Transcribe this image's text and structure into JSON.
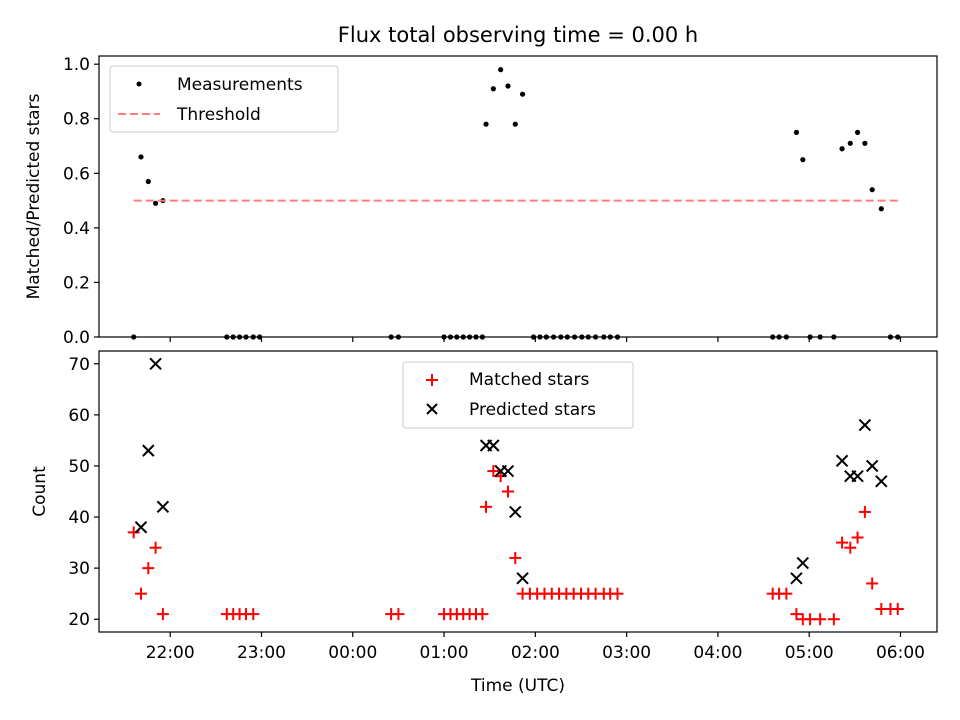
{
  "title": "Flux total observing time = 0.00 h",
  "colors": {
    "measurements": "#000000",
    "threshold": "#ff7b7b",
    "matched": "#ff0000",
    "predicted": "#000000",
    "axes": "#000000",
    "background": "#ffffff"
  },
  "chart_data": [
    {
      "type": "scatter",
      "title": "Flux total observing time = 0.00 h",
      "xlabel": "",
      "ylabel": "Matched/Predicted stars",
      "x_unit": "hours since 21:00 UTC",
      "xlim": [
        0.22,
        9.4
      ],
      "ylim": [
        0.0,
        1.03
      ],
      "yticks": [
        0.0,
        0.2,
        0.4,
        0.6,
        0.8,
        1.0
      ],
      "yticklabels": [
        "0.0",
        "0.2",
        "0.4",
        "0.6",
        "0.8",
        "1.0"
      ],
      "grid": false,
      "legend_position": "upper left",
      "series": [
        {
          "name": "Measurements",
          "kind": "scatter",
          "marker": "dot",
          "color": "#000000",
          "x": [
            0.6,
            0.68,
            0.76,
            0.84,
            0.92,
            1.62,
            1.69,
            1.76,
            1.83,
            1.91,
            1.98,
            3.42,
            3.5,
            4.0,
            4.07,
            4.14,
            4.21,
            4.28,
            4.35,
            4.42,
            4.46,
            4.54,
            4.62,
            4.7,
            4.78,
            4.86,
            4.98,
            5.05,
            5.12,
            5.2,
            5.28,
            5.35,
            5.43,
            5.51,
            5.58,
            5.66,
            5.75,
            5.82,
            5.9,
            7.6,
            7.67,
            7.75,
            7.86,
            7.93,
            8.01,
            8.12,
            8.27,
            8.36,
            8.45,
            8.53,
            8.61,
            8.69,
            8.79,
            8.89,
            8.97
          ],
          "y": [
            0.0,
            0.66,
            0.57,
            0.49,
            0.5,
            0.0,
            0.0,
            0.0,
            0.0,
            0.0,
            0.0,
            0.0,
            0.0,
            0.0,
            0.0,
            0.0,
            0.0,
            0.0,
            0.0,
            0.0,
            0.78,
            0.91,
            0.98,
            0.92,
            0.78,
            0.89,
            0.0,
            0.0,
            0.0,
            0.0,
            0.0,
            0.0,
            0.0,
            0.0,
            0.0,
            0.0,
            0.0,
            0.0,
            0.0,
            0.0,
            0.0,
            0.0,
            0.75,
            0.65,
            0.0,
            0.0,
            0.0,
            0.69,
            0.71,
            0.75,
            0.71,
            0.54,
            0.47,
            0.0,
            0.0
          ]
        },
        {
          "name": "Threshold",
          "kind": "line",
          "style": "dashed",
          "color": "#ff7b7b",
          "x": [
            0.6,
            8.97
          ],
          "y": [
            0.5,
            0.5
          ]
        }
      ]
    },
    {
      "type": "scatter",
      "title": "",
      "xlabel": "Time (UTC)",
      "ylabel": "Count",
      "x_unit": "hours since 21:00 UTC",
      "xlim": [
        0.22,
        9.4
      ],
      "ylim": [
        17.5,
        72.5
      ],
      "yticks": [
        20,
        30,
        40,
        50,
        60,
        70
      ],
      "yticklabels": [
        "20",
        "30",
        "40",
        "50",
        "60",
        "70"
      ],
      "xticks": [
        1,
        2,
        3,
        4,
        5,
        6,
        7,
        8,
        9
      ],
      "xticklabels": [
        "22:00",
        "23:00",
        "00:00",
        "01:00",
        "02:00",
        "03:00",
        "04:00",
        "05:00",
        "06:00"
      ],
      "grid": false,
      "legend_position": "upper center",
      "series": [
        {
          "name": "Matched stars",
          "kind": "scatter",
          "marker": "plus",
          "color": "#ff0000",
          "x": [
            0.6,
            0.68,
            0.76,
            0.84,
            0.92,
            1.62,
            1.69,
            1.76,
            1.83,
            1.91,
            3.42,
            3.5,
            4.0,
            4.07,
            4.14,
            4.21,
            4.28,
            4.35,
            4.42,
            4.46,
            4.54,
            4.62,
            4.7,
            4.78,
            4.86,
            4.94,
            5.02,
            5.1,
            5.18,
            5.26,
            5.34,
            5.42,
            5.5,
            5.58,
            5.66,
            5.75,
            5.82,
            5.9,
            7.6,
            7.67,
            7.75,
            7.86,
            7.93,
            8.01,
            8.12,
            8.27,
            8.36,
            8.45,
            8.53,
            8.61,
            8.69,
            8.79,
            8.89,
            8.97
          ],
          "y": [
            37,
            25,
            30,
            34,
            21,
            21,
            21,
            21,
            21,
            21,
            21,
            21,
            21,
            21,
            21,
            21,
            21,
            21,
            21,
            42,
            49,
            48,
            45,
            32,
            25,
            25,
            25,
            25,
            25,
            25,
            25,
            25,
            25,
            25,
            25,
            25,
            25,
            25,
            25,
            25,
            25,
            21,
            20,
            20,
            20,
            20,
            35,
            34,
            36,
            41,
            27,
            22,
            22,
            22
          ]
        },
        {
          "name": "Predicted stars",
          "kind": "scatter",
          "marker": "x",
          "color": "#000000",
          "x": [
            0.68,
            0.76,
            0.84,
            0.92,
            4.46,
            4.54,
            4.62,
            4.7,
            4.78,
            4.86,
            7.86,
            7.93,
            8.36,
            8.45,
            8.53,
            8.61,
            8.69,
            8.79
          ],
          "y": [
            38,
            53,
            70,
            42,
            54,
            54,
            49,
            49,
            41,
            28,
            28,
            31,
            51,
            48,
            48,
            58,
            50,
            47
          ]
        }
      ]
    }
  ]
}
